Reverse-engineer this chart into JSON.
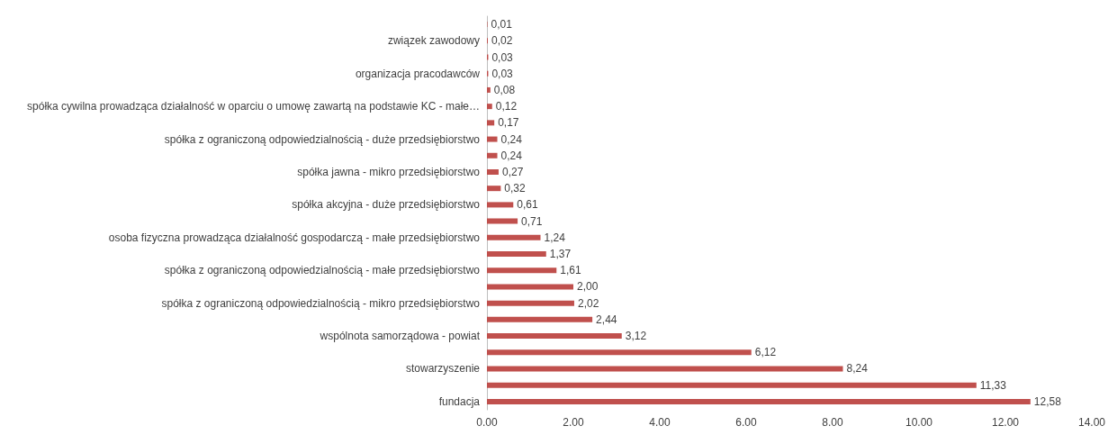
{
  "chart_data": {
    "type": "bar",
    "orientation": "horizontal",
    "categories": [
      null,
      "związek zawodowy",
      null,
      "organizacja pracodawców",
      null,
      "spółka cywilna prowadząca działalność w oparciu o umowę zawartą na podstawie KC - małe…",
      null,
      "spółka z ograniczoną odpowiedzialnością - duże przedsiębiorstwo",
      null,
      "spółka jawna - mikro przedsiębiorstwo",
      null,
      "spółka akcyjna - duże przedsiębiorstwo",
      null,
      "osoba fizyczna prowadząca działalność gospodarczą - małe przedsiębiorstwo",
      null,
      "spółka z ograniczoną odpowiedzialnością - małe przedsiębiorstwo",
      null,
      "spółka z ograniczoną odpowiedzialnością - mikro przedsiębiorstwo",
      null,
      "wspólnota samorządowa - powiat",
      null,
      "stowarzyszenie",
      null,
      "fundacja"
    ],
    "values": [
      0.01,
      0.02,
      0.03,
      0.03,
      0.08,
      0.12,
      0.17,
      0.24,
      0.24,
      0.27,
      0.32,
      0.61,
      0.71,
      1.24,
      1.37,
      1.61,
      2.0,
      2.02,
      2.44,
      3.12,
      6.12,
      8.24,
      11.33,
      12.58
    ],
    "value_labels": [
      "0,01",
      "0,02",
      "0,03",
      "0,03",
      "0,08",
      "0,12",
      "0,17",
      "0,24",
      "0,24",
      "0,27",
      "0,32",
      "0,61",
      "0,71",
      "1,24",
      "1,37",
      "1,61",
      "2,00",
      "2,02",
      "2,44",
      "3,12",
      "6,12",
      "8,24",
      "11,33",
      "12,58"
    ],
    "color": "#c0504d",
    "xlim": [
      0,
      14
    ],
    "xticks": [
      {
        "value": 0,
        "label": "0.00"
      },
      {
        "value": 2,
        "label": "2.00"
      },
      {
        "value": 4,
        "label": "4.00"
      },
      {
        "value": 6,
        "label": "6.00"
      },
      {
        "value": 8,
        "label": "8.00"
      },
      {
        "value": 10,
        "label": "10.00"
      },
      {
        "value": 12,
        "label": "12.00"
      },
      {
        "value": 14,
        "label": "14.00"
      }
    ],
    "grid": false
  }
}
